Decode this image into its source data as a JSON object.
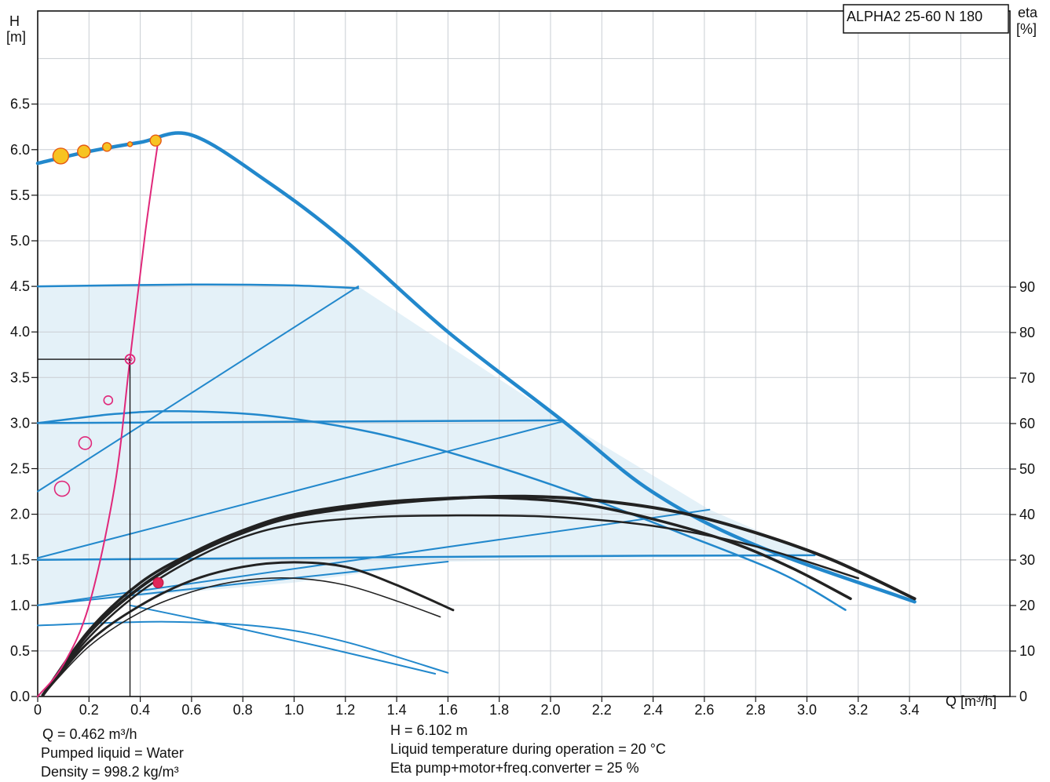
{
  "chart_data": {
    "type": "line",
    "model": "ALPHA2 25-60 N 180",
    "x_axis": {
      "label": "Q [m³/h]",
      "range": [
        0,
        3.6
      ],
      "ticks": [
        "0",
        "0.2",
        "0.4",
        "0.6",
        "0.8",
        "1.0",
        "1.2",
        "1.4",
        "1.6",
        "1.8",
        "2.0",
        "2.2",
        "2.4",
        "2.6",
        "2.8",
        "3.0",
        "3.2",
        "3.4"
      ]
    },
    "y_axis_left": {
      "label_top": "H",
      "label_unit": "[m]",
      "range": [
        0,
        6.5
      ],
      "ticks": [
        "0.0",
        "0.5",
        "1.0",
        "1.5",
        "2.0",
        "2.5",
        "3.0",
        "3.5",
        "4.0",
        "4.5",
        "5.0",
        "5.5",
        "6.0",
        "6.5"
      ]
    },
    "y_axis_right": {
      "label_top": "eta",
      "label_unit": "[%]",
      "range": [
        0,
        90
      ],
      "ticks": [
        "0",
        "10",
        "20",
        "30",
        "40",
        "50",
        "60",
        "70",
        "80",
        "90"
      ]
    },
    "grid": true,
    "series": [
      {
        "kind": "head",
        "color": "#2288cc",
        "width": 4.5,
        "points": [
          [
            0,
            5.85
          ],
          [
            0.2,
            5.98
          ],
          [
            0.4,
            6.08
          ],
          [
            0.6,
            6.16
          ],
          [
            0.9,
            5.64
          ],
          [
            1.2,
            5.0
          ],
          [
            1.6,
            4.0
          ],
          [
            2.05,
            3.02
          ],
          [
            2.4,
            2.24
          ],
          [
            2.8,
            1.66
          ],
          [
            3.42,
            1.04
          ]
        ]
      },
      {
        "kind": "head",
        "color": "#2288cc",
        "width": 2.5,
        "points": [
          [
            0,
            4.5
          ],
          [
            0.6,
            4.52
          ],
          [
            1.0,
            4.51
          ],
          [
            1.25,
            4.48
          ]
        ]
      },
      {
        "kind": "head",
        "color": "#2288cc",
        "width": 2.5,
        "points": [
          [
            0,
            3.0
          ],
          [
            0.3,
            3.1
          ],
          [
            0.55,
            3.13
          ],
          [
            0.9,
            3.08
          ],
          [
            1.3,
            2.9
          ],
          [
            1.7,
            2.6
          ],
          [
            2.1,
            2.23
          ],
          [
            2.5,
            1.8
          ],
          [
            2.9,
            1.35
          ],
          [
            3.15,
            0.95
          ]
        ]
      },
      {
        "kind": "head",
        "color": "#2288cc",
        "width": 2.5,
        "points": [
          [
            0,
            3.0
          ],
          [
            2.05,
            3.03
          ]
        ]
      },
      {
        "kind": "head",
        "color": "#2288cc",
        "width": 2.5,
        "points": [
          [
            0,
            1.5
          ],
          [
            1.0,
            1.52
          ],
          [
            2.0,
            1.54
          ],
          [
            3.03,
            1.55
          ]
        ]
      },
      {
        "kind": "head",
        "color": "#2288cc",
        "width": 2,
        "points": [
          [
            0,
            0.78
          ],
          [
            0.5,
            0.82
          ],
          [
            0.9,
            0.76
          ],
          [
            1.2,
            0.6
          ],
          [
            1.6,
            0.26
          ]
        ]
      },
      {
        "kind": "head",
        "color": "#2288cc",
        "width": 2,
        "points": [
          [
            0.36,
            1.0
          ],
          [
            0.7,
            0.8
          ],
          [
            1.1,
            0.55
          ],
          [
            1.55,
            0.25
          ]
        ]
      },
      {
        "kind": "proportional",
        "color": "#2288cc",
        "width": 2,
        "points": [
          [
            0,
            2.25
          ],
          [
            1.25,
            4.5
          ]
        ]
      },
      {
        "kind": "proportional",
        "color": "#2288cc",
        "width": 2,
        "points": [
          [
            0,
            1.52
          ],
          [
            2.05,
            3.02
          ]
        ]
      },
      {
        "kind": "proportional",
        "color": "#2288cc",
        "width": 2,
        "points": [
          [
            0,
            1.0
          ],
          [
            2.62,
            2.05
          ]
        ]
      },
      {
        "kind": "proportional",
        "color": "#2288cc",
        "width": 2,
        "points": [
          [
            0,
            1.0
          ],
          [
            1.6,
            1.48
          ]
        ]
      },
      {
        "kind": "efficiency",
        "color": "#222222",
        "width": 4,
        "points": [
          [
            0.02,
            0.3
          ],
          [
            0.2,
            14
          ],
          [
            0.4,
            24
          ],
          [
            0.6,
            31
          ],
          [
            0.8,
            36
          ],
          [
            1.0,
            39.5
          ],
          [
            1.3,
            42
          ],
          [
            1.6,
            43.5
          ],
          [
            1.9,
            44
          ],
          [
            2.2,
            43
          ],
          [
            2.5,
            40.5
          ],
          [
            2.8,
            36
          ],
          [
            3.1,
            30
          ],
          [
            3.42,
            21.5
          ]
        ]
      },
      {
        "kind": "efficiency",
        "color": "#222222",
        "width": 3.5,
        "points": [
          [
            0.02,
            0.3
          ],
          [
            0.2,
            14.5
          ],
          [
            0.4,
            25
          ],
          [
            0.6,
            31.5
          ],
          [
            0.8,
            36.5
          ],
          [
            1.0,
            40
          ],
          [
            1.3,
            42.5
          ],
          [
            1.6,
            43.6
          ],
          [
            1.8,
            43.7
          ],
          [
            2.1,
            42.5
          ],
          [
            2.4,
            39
          ],
          [
            2.7,
            34
          ],
          [
            2.95,
            28
          ],
          [
            3.17,
            21.5
          ]
        ]
      },
      {
        "kind": "efficiency",
        "color": "#222222",
        "width": 2.5,
        "points": [
          [
            0.02,
            0.3
          ],
          [
            0.2,
            13
          ],
          [
            0.4,
            23
          ],
          [
            0.6,
            30
          ],
          [
            0.8,
            35
          ],
          [
            1.0,
            37.8
          ],
          [
            1.3,
            39.4
          ],
          [
            1.6,
            39.8
          ],
          [
            2.0,
            39.5
          ],
          [
            2.4,
            37.5
          ],
          [
            2.8,
            33
          ],
          [
            3.2,
            26
          ]
        ]
      },
      {
        "kind": "efficiency",
        "color": "#222222",
        "width": 3,
        "points": [
          [
            0.02,
            0.3
          ],
          [
            0.2,
            12
          ],
          [
            0.4,
            20
          ],
          [
            0.6,
            25.5
          ],
          [
            0.8,
            28.5
          ],
          [
            1.0,
            29.5
          ],
          [
            1.2,
            28.5
          ],
          [
            1.4,
            24.5
          ],
          [
            1.62,
            19
          ]
        ]
      },
      {
        "kind": "efficiency",
        "color": "#222222",
        "width": 1.6,
        "points": [
          [
            0.02,
            0.3
          ],
          [
            0.2,
            11
          ],
          [
            0.4,
            18.5
          ],
          [
            0.6,
            23
          ],
          [
            0.8,
            25.5
          ],
          [
            1.0,
            26
          ],
          [
            1.2,
            24.5
          ],
          [
            1.4,
            21
          ],
          [
            1.57,
            17.5
          ]
        ]
      },
      {
        "kind": "p1",
        "color": "#e0287a",
        "width": 2,
        "points": [
          [
            0,
            0
          ],
          [
            0.1,
            0.35
          ],
          [
            0.2,
            1.0
          ],
          [
            0.3,
            2.3
          ],
          [
            0.36,
            3.7
          ],
          [
            0.42,
            5.1
          ],
          [
            0.47,
            6.1
          ]
        ]
      }
    ],
    "operating_point": {
      "Q": 0.462,
      "H": 6.102
    },
    "reference_line": {
      "H": 3.7,
      "Q": 0.36
    }
  },
  "info": {
    "q_line": "Q = 0.462 m³/h",
    "liquid_line": "Pumped liquid = Water",
    "density_line": "Density = 998.2 kg/m³",
    "h_line": "H = 6.102 m",
    "temp_line": "Liquid temperature during operation = 20 °C",
    "eta_line": "Eta pump+motor+freq.converter = 25 %"
  }
}
